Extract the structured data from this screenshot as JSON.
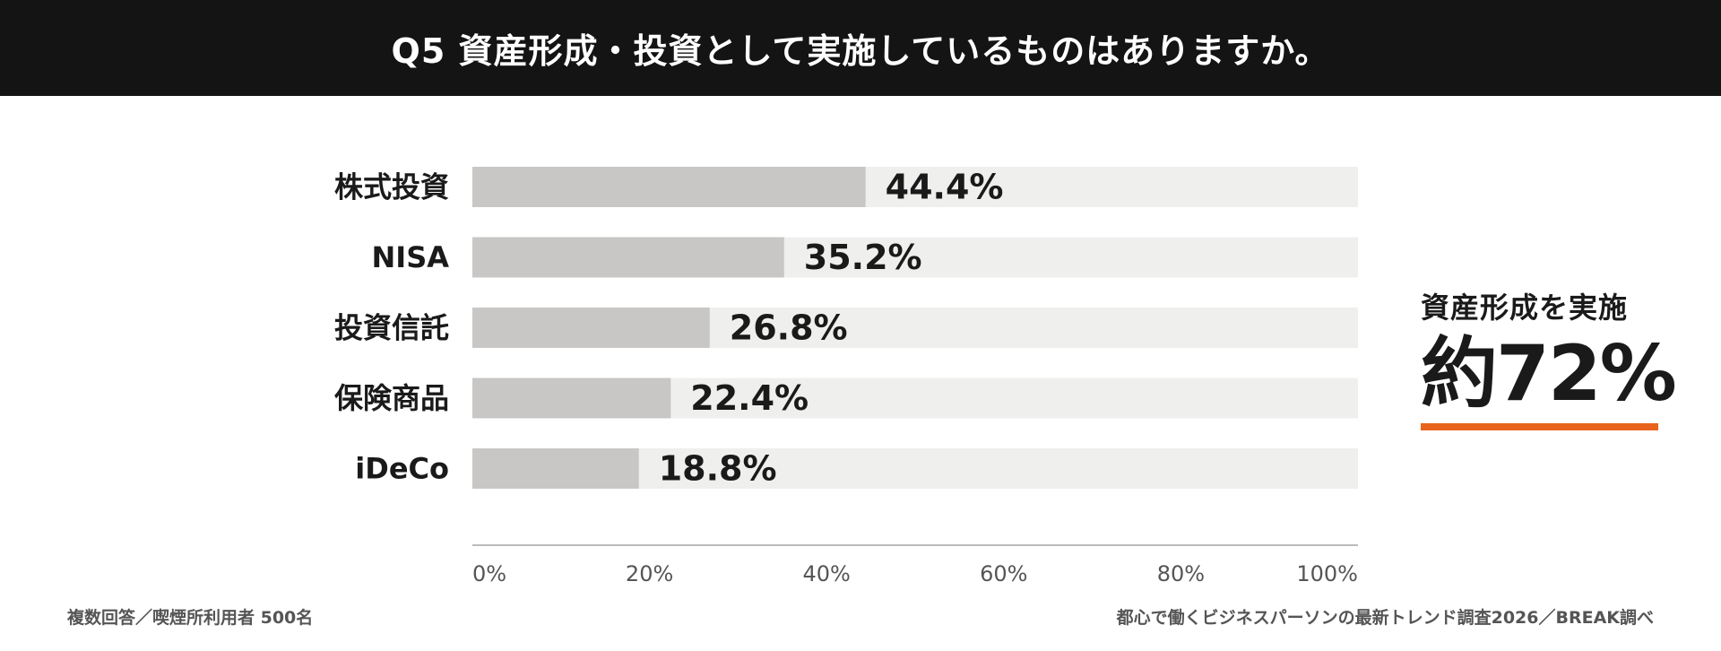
{
  "header": {
    "title": "Q5  資産形成・投資として実施しているものはありますか。"
  },
  "chart_data": {
    "type": "bar",
    "orientation": "horizontal",
    "categories": [
      "株式投資",
      "NISA",
      "投資信託",
      "保険商品",
      "iDeCo"
    ],
    "values": [
      44.4,
      35.2,
      26.8,
      22.4,
      18.8
    ],
    "value_labels": [
      "44.4%",
      "35.2%",
      "26.8%",
      "22.4%",
      "18.8%"
    ],
    "xlim": [
      0,
      100
    ],
    "x_ticks": [
      "0%",
      "20%",
      "40%",
      "60%",
      "80%",
      "100%"
    ],
    "grid": false,
    "colors": {
      "bar": "#c9c7c5",
      "track": "#efefed",
      "axis": "#bbbbbb"
    }
  },
  "callout": {
    "label": "資産形成を実施",
    "value": "約72%",
    "underline_color": "#e8641e"
  },
  "footnotes": {
    "left": "複数回答／喫煙所利用者 500名",
    "right": "都心で働くビジネスパーソンの最新トレンド調査2026／BREAK調べ"
  }
}
